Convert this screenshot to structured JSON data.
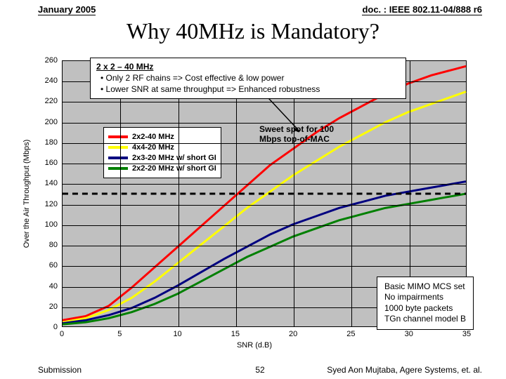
{
  "header": {
    "left": "January 2005",
    "right": "doc. : IEEE 802.11-04/888 r6"
  },
  "title": "Why 40MHz is Mandatory?",
  "chart": {
    "type": "line",
    "xlabel": "SNR (d.B)",
    "ylabel": "Over the Air Throughput (Mbps)",
    "xlim": [
      0,
      35
    ],
    "ylim": [
      0,
      260
    ],
    "xtick_step": 5,
    "ytick_step": 20,
    "background_color": "#c0c0c0",
    "grid_color": "#000000",
    "series": [
      {
        "name": "2x2-40 MHz",
        "color": "#ff0000",
        "width": 3,
        "pts": [
          [
            0,
            6
          ],
          [
            2,
            10
          ],
          [
            4,
            20
          ],
          [
            6,
            38
          ],
          [
            8,
            58
          ],
          [
            10,
            78
          ],
          [
            12,
            98
          ],
          [
            14,
            118
          ],
          [
            16,
            138
          ],
          [
            18,
            158
          ],
          [
            20,
            174
          ],
          [
            22,
            190
          ],
          [
            24,
            204
          ],
          [
            26,
            216
          ],
          [
            28,
            228
          ],
          [
            30,
            238
          ],
          [
            32,
            246
          ],
          [
            34,
            252
          ],
          [
            35,
            255
          ]
        ]
      },
      {
        "name": "4x4-20 MHz",
        "color": "#ffff00",
        "width": 3,
        "pts": [
          [
            0,
            4
          ],
          [
            2,
            8
          ],
          [
            4,
            16
          ],
          [
            6,
            28
          ],
          [
            8,
            44
          ],
          [
            10,
            62
          ],
          [
            12,
            80
          ],
          [
            14,
            98
          ],
          [
            16,
            116
          ],
          [
            18,
            132
          ],
          [
            20,
            148
          ],
          [
            22,
            162
          ],
          [
            24,
            176
          ],
          [
            26,
            188
          ],
          [
            28,
            200
          ],
          [
            30,
            210
          ],
          [
            32,
            218
          ],
          [
            34,
            226
          ],
          [
            35,
            230
          ]
        ]
      },
      {
        "name": "2x3-20 MHz w/ short GI",
        "color": "#000080",
        "width": 3,
        "pts": [
          [
            0,
            3
          ],
          [
            2,
            6
          ],
          [
            4,
            11
          ],
          [
            6,
            18
          ],
          [
            8,
            28
          ],
          [
            10,
            40
          ],
          [
            12,
            53
          ],
          [
            14,
            66
          ],
          [
            16,
            78
          ],
          [
            18,
            90
          ],
          [
            20,
            100
          ],
          [
            22,
            108
          ],
          [
            24,
            116
          ],
          [
            26,
            122
          ],
          [
            28,
            128
          ],
          [
            30,
            132
          ],
          [
            32,
            136
          ],
          [
            34,
            140
          ],
          [
            35,
            142
          ]
        ]
      },
      {
        "name": "2x2-20 MHz w/ short GI",
        "color": "#008000",
        "width": 3,
        "pts": [
          [
            0,
            2
          ],
          [
            2,
            4
          ],
          [
            4,
            8
          ],
          [
            6,
            14
          ],
          [
            8,
            22
          ],
          [
            10,
            32
          ],
          [
            12,
            44
          ],
          [
            14,
            56
          ],
          [
            16,
            68
          ],
          [
            18,
            78
          ],
          [
            20,
            88
          ],
          [
            22,
            96
          ],
          [
            24,
            104
          ],
          [
            26,
            110
          ],
          [
            28,
            116
          ],
          [
            30,
            120
          ],
          [
            32,
            124
          ],
          [
            34,
            128
          ],
          [
            35,
            130
          ]
        ]
      }
    ]
  },
  "callout": {
    "title": "2 x 2 – 40 MHz",
    "bullets": [
      "Only 2 RF chains => Cost effective & low power",
      "Lower SNR at same  throughput => Enhanced robustness"
    ]
  },
  "sweet_spot": {
    "line1": "Sweet spot for 100",
    "line2": "Mbps top-of-MAC",
    "y_value": 130
  },
  "note_box": [
    "Basic MIMO MCS set",
    "No impairments",
    "1000 byte packets",
    "TGn channel model B"
  ],
  "footer": {
    "left": "Submission",
    "page": "52",
    "right": "Syed Aon Mujtaba, Agere Systems, et. al."
  }
}
